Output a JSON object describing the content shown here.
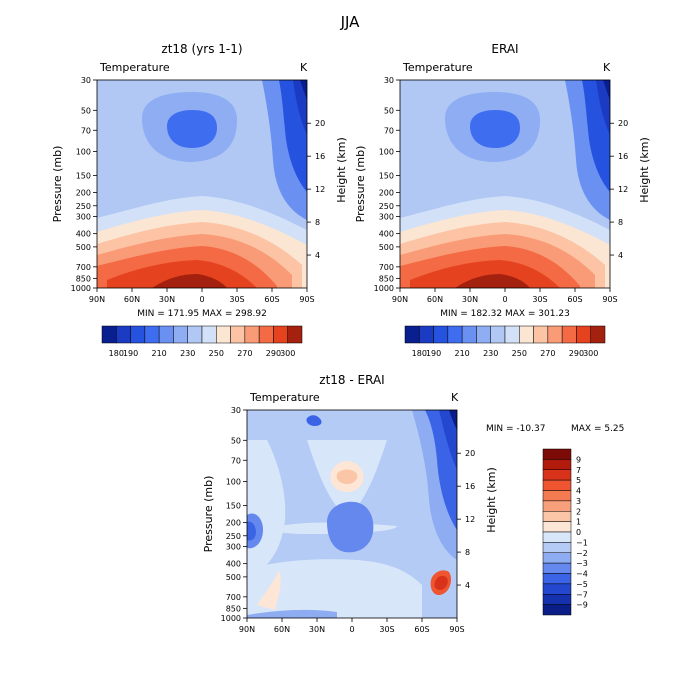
{
  "main_title": "JJA",
  "chart_data": [
    {
      "type": "heatmap",
      "title": "zt18 (yrs 1-1)",
      "subtitle": "Temperature",
      "units": "K",
      "ylabel": "Pressure (mb)",
      "ylabel_right": "Height (km)",
      "x_ticks": [
        "90N",
        "60N",
        "30N",
        "0",
        "30S",
        "60S",
        "90S"
      ],
      "y_ticks": [
        "30",
        "50",
        "70",
        "100",
        "150",
        "200",
        "250",
        "300",
        "400",
        "500",
        "700",
        "850",
        "1000"
      ],
      "height_ticks": [
        "20",
        "16",
        "12",
        "8",
        "4"
      ],
      "min_max": "MIN = 171.95  MAX = 298.92",
      "levels": [
        180,
        190,
        200,
        210,
        220,
        230,
        240,
        250,
        260,
        270,
        280,
        290,
        300
      ],
      "level_labels": [
        "180",
        "190",
        "210",
        "230",
        "250",
        "270",
        "290",
        "300"
      ],
      "colors": [
        "#0a1f8f",
        "#1b3cc2",
        "#2553e0",
        "#3f6df0",
        "#6a90f2",
        "#8eadf3",
        "#b1c8f5",
        "#d2e1f7",
        "#fbe6d4",
        "#fcc4a4",
        "#f99b76",
        "#f36a45",
        "#e5431f",
        "#a5210f"
      ]
    },
    {
      "type": "heatmap",
      "title": "ERAI",
      "subtitle": "Temperature",
      "units": "K",
      "ylabel": "Pressure (mb)",
      "ylabel_right": "Height (km)",
      "x_ticks": [
        "90N",
        "60N",
        "30N",
        "0",
        "30S",
        "60S",
        "90S"
      ],
      "y_ticks": [
        "30",
        "50",
        "70",
        "100",
        "150",
        "200",
        "250",
        "300",
        "400",
        "500",
        "700",
        "850",
        "1000"
      ],
      "height_ticks": [
        "20",
        "16",
        "12",
        "8",
        "4"
      ],
      "min_max": "MIN = 182.32  MAX = 301.23",
      "levels": [
        180,
        190,
        200,
        210,
        220,
        230,
        240,
        250,
        260,
        270,
        280,
        290,
        300
      ],
      "level_labels": [
        "180",
        "190",
        "210",
        "230",
        "250",
        "270",
        "290",
        "300"
      ],
      "colors": [
        "#0a1f8f",
        "#1b3cc2",
        "#2553e0",
        "#3f6df0",
        "#6a90f2",
        "#8eadf3",
        "#b1c8f5",
        "#d2e1f7",
        "#fbe6d4",
        "#fcc4a4",
        "#f99b76",
        "#f36a45",
        "#e5431f",
        "#a5210f"
      ]
    },
    {
      "type": "heatmap",
      "title": "zt18 - ERAI",
      "subtitle": "Temperature",
      "units": "K",
      "ylabel": "Pressure (mb)",
      "ylabel_right": "Height (km)",
      "x_ticks": [
        "90N",
        "60N",
        "30N",
        "0",
        "30S",
        "60S",
        "90S"
      ],
      "y_ticks": [
        "30",
        "50",
        "70",
        "100",
        "150",
        "200",
        "250",
        "300",
        "400",
        "500",
        "700",
        "850",
        "1000"
      ],
      "height_ticks": [
        "20",
        "16",
        "12",
        "8",
        "4"
      ],
      "min_label": "MIN = -10.37",
      "max_label": "MAX =    5.25",
      "levels": [
        -9,
        -7,
        -5,
        -4,
        -3,
        -2,
        -1,
        0,
        1,
        2,
        3,
        4,
        5,
        7,
        9
      ],
      "level_labels": [
        "9",
        "7",
        "5",
        "4",
        "3",
        "2",
        "1",
        "0",
        "−1",
        "−2",
        "−3",
        "−4",
        "−5",
        "−7",
        "−9"
      ],
      "colors": [
        "#7c0a07",
        "#b21a0c",
        "#d8321a",
        "#ee5530",
        "#f47a52",
        "#f8a07c",
        "#fbc6a8",
        "#fde6d6",
        "#d8e6f9",
        "#b4cbf6",
        "#8eacf2",
        "#6488ee",
        "#3b63e6",
        "#2348cf",
        "#1631ad",
        "#0b1d86"
      ]
    }
  ]
}
